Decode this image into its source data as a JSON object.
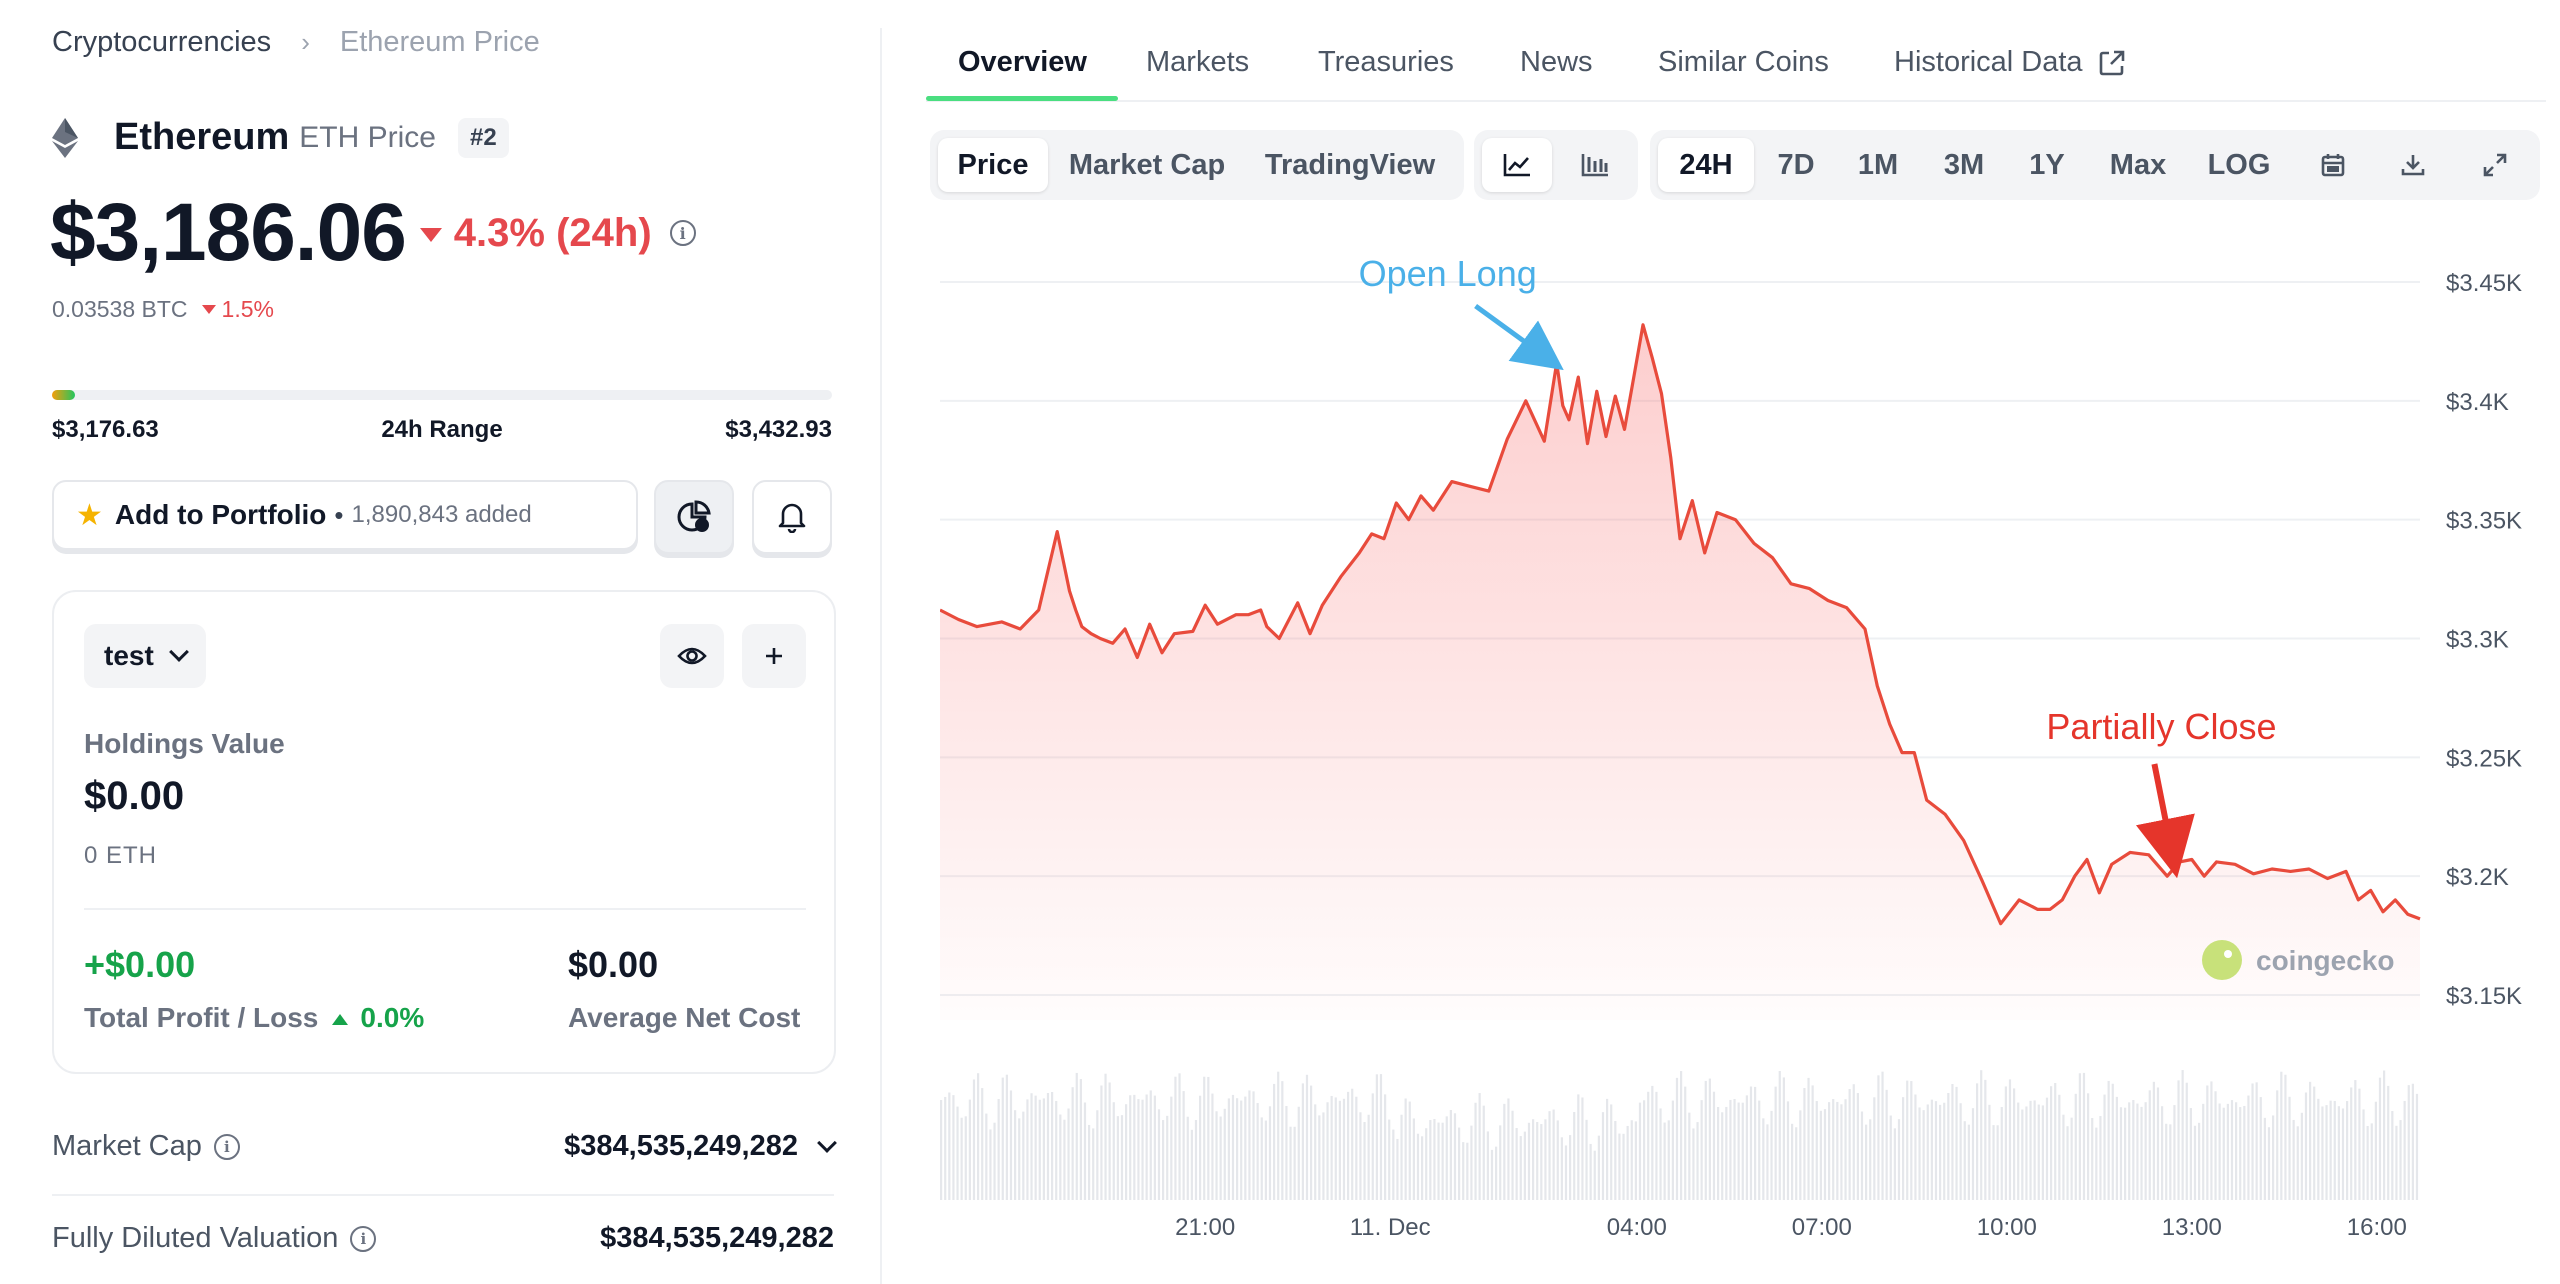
{
  "breadcrumb": {
    "root": "Cryptocurrencies",
    "separator": "›",
    "current": "Ethereum Price"
  },
  "coin": {
    "name": "Ethereum",
    "subtitle": "ETH Price",
    "rank": "#2",
    "icon": "ethereum-icon"
  },
  "price": {
    "value": "$3,186.06",
    "change": "4.3% (24h)",
    "direction": "down",
    "btc_value": "0.03538 BTC",
    "btc_change": "1.5%"
  },
  "range": {
    "low": "$3,176.63",
    "label": "24h Range",
    "high": "$3,432.93",
    "fill_fraction": 0.03
  },
  "portfolio": {
    "label": "Add to Portfolio",
    "separator": "•",
    "added": "1,890,843 added",
    "icon": "star-icon"
  },
  "holdings": {
    "portfolio_name": "test",
    "holdings_label": "Holdings Value",
    "holdings_value": "$0.00",
    "holdings_amount": "0 ETH",
    "pl_value": "+$0.00",
    "pl_label": "Total Profit / Loss",
    "pl_percent": "0.0%",
    "avg_cost_value": "$0.00",
    "avg_cost_label": "Average Net Cost"
  },
  "stats": [
    {
      "label": "Market Cap",
      "value": "$384,535,249,282"
    },
    {
      "label": "Fully Diluted Valuation",
      "value": "$384,535,249,282"
    }
  ],
  "tabs": [
    "Overview",
    "Markets",
    "Treasuries",
    "News",
    "Similar Coins",
    "Historical Data"
  ],
  "chart_controls": {
    "metric_tabs": [
      "Price",
      "Market Cap",
      "TradingView"
    ],
    "chart_type_icons": [
      "line-chart-icon",
      "candlestick-icon"
    ],
    "ranges": [
      "24H",
      "7D",
      "1M",
      "3M",
      "1Y",
      "Max",
      "LOG"
    ],
    "tool_icons": [
      "calendar-icon",
      "download-icon",
      "fullscreen-icon"
    ]
  },
  "colors": {
    "accent_green": "#4ade80",
    "down_red": "#e5484d",
    "up_green": "#16a34a",
    "line": "#e84b3c",
    "annotation_blue": "#4ab0e8"
  },
  "chart_data": {
    "type": "area",
    "y_tick_labels": [
      "$3.45K",
      "$3.4K",
      "$3.35K",
      "$3.3K",
      "$3.25K",
      "$3.2K",
      "$3.15K"
    ],
    "ylim": [
      3150,
      3450
    ],
    "x_tick_labels": [
      "21:00",
      "11. Dec",
      "04:00",
      "07:00",
      "10:00",
      "13:00",
      "16:00"
    ],
    "x_tick_hours": [
      4.3,
      7.3,
      11.3,
      14.3,
      17.3,
      20.3,
      23.3
    ],
    "x_range_hours": [
      0,
      24
    ],
    "series": [
      {
        "x": [
          0,
          0.3,
          0.6,
          1,
          1.3,
          1.6,
          1.9,
          2.1,
          2.2,
          2.3,
          2.45,
          2.6,
          2.8,
          3,
          3.2,
          3.4,
          3.6,
          3.8,
          4.1,
          4.3,
          4.5,
          4.8,
          5,
          5.2,
          5.3,
          5.5,
          5.8,
          6,
          6.2,
          6.5,
          6.8,
          7,
          7.2,
          7.4,
          7.6,
          7.8,
          8,
          8.3,
          8.6,
          8.9,
          9.2,
          9.5,
          9.8,
          10,
          10.1,
          10.2,
          10.35,
          10.5,
          10.65,
          10.8,
          10.95,
          11.1,
          11.25,
          11.4,
          11.55,
          11.7,
          11.85,
          12,
          12.2,
          12.4,
          12.6,
          12.9,
          13.2,
          13.5,
          13.8,
          14.1,
          14.4,
          14.7,
          15,
          15.2,
          15.4,
          15.6,
          15.8,
          16,
          16.3,
          16.6,
          16.9,
          17.2,
          17.5,
          17.8,
          18,
          18.2,
          18.4,
          18.6,
          18.8,
          19,
          19.3,
          19.6,
          19.9,
          20.1,
          20.3,
          20.5,
          20.7,
          21,
          21.3,
          21.6,
          21.9,
          22.2,
          22.5,
          22.8,
          23,
          23.2,
          23.4,
          23.6,
          23.8,
          24
        ],
        "y": [
          3312,
          3308,
          3305,
          3307,
          3304,
          3312,
          3345,
          3320,
          3312,
          3305,
          3302,
          3300,
          3298,
          3304,
          3292,
          3306,
          3294,
          3302,
          3303,
          3314,
          3306,
          3310,
          3310,
          3312,
          3305,
          3300,
          3315,
          3302,
          3314,
          3326,
          3336,
          3344,
          3342,
          3357,
          3350,
          3360,
          3354,
          3366,
          3364,
          3362,
          3384,
          3400,
          3383,
          3416,
          3398,
          3392,
          3410,
          3382,
          3404,
          3385,
          3402,
          3388,
          3410,
          3432,
          3418,
          3403,
          3376,
          3342,
          3358,
          3336,
          3353,
          3350,
          3340,
          3334,
          3323,
          3321,
          3316,
          3313,
          3304,
          3280,
          3264,
          3252,
          3252,
          3232,
          3226,
          3215,
          3198,
          3180,
          3190,
          3186,
          3186,
          3190,
          3200,
          3207,
          3193,
          3205,
          3210,
          3209,
          3200,
          3206,
          3207,
          3200,
          3206,
          3205,
          3201,
          3203,
          3202,
          3203,
          3199,
          3202,
          3190,
          3194,
          3185,
          3190,
          3184,
          3182
        ]
      }
    ],
    "annotations": [
      {
        "text": "Open Long",
        "x": 9.95,
        "y": 3412
      },
      {
        "text": "Partially Close",
        "x": 20.05,
        "y": 3204
      }
    ],
    "watermark": "coingecko",
    "volume": {
      "shown": true
    }
  }
}
